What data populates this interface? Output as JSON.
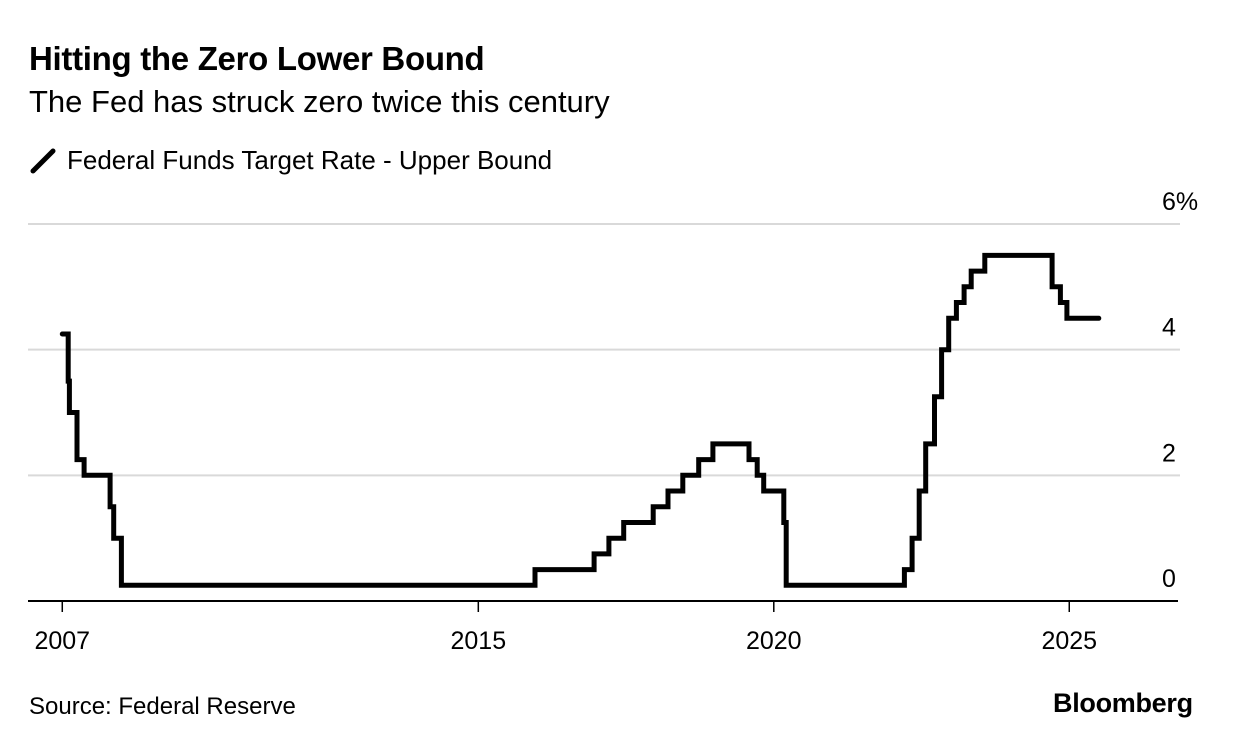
{
  "header": {
    "title": "Hitting the Zero Lower Bound",
    "subtitle": "The Fed has struck zero twice this century"
  },
  "legend": {
    "items": [
      {
        "label": "Federal Funds Target Rate - Upper Bound",
        "icon": "line-swatch-icon",
        "color": "#000000"
      }
    ]
  },
  "footer": {
    "source": "Source: Federal Reserve",
    "brand": "Bloomberg"
  },
  "chart_data": {
    "type": "line",
    "step": true,
    "title": "Hitting the Zero Lower Bound",
    "subtitle": "The Fed has struck zero twice this century",
    "xlabel": "",
    "ylabel": "",
    "y_unit": "%",
    "ylim": [
      0,
      6
    ],
    "xlim": [
      2007.38,
      2026.84
    ],
    "yticks": [
      {
        "value": 0,
        "label": "0"
      },
      {
        "value": 2,
        "label": "2"
      },
      {
        "value": 4,
        "label": "4"
      },
      {
        "value": 6,
        "label": "6%"
      }
    ],
    "xticks": [
      {
        "value": 2007.96,
        "label": "2007"
      },
      {
        "value": 2015,
        "label": "2015"
      },
      {
        "value": 2020,
        "label": "2020"
      },
      {
        "value": 2025,
        "label": "2025"
      }
    ],
    "grid": true,
    "legend_position": "top-left",
    "series": [
      {
        "name": "Federal Funds Target Rate - Upper Bound",
        "color": "#000000",
        "points": [
          {
            "x": 2007.96,
            "y": 4.25
          },
          {
            "x": 2008.06,
            "y": 3.5
          },
          {
            "x": 2008.08,
            "y": 3.0
          },
          {
            "x": 2008.21,
            "y": 2.25
          },
          {
            "x": 2008.33,
            "y": 2.0
          },
          {
            "x": 2008.77,
            "y": 1.5
          },
          {
            "x": 2008.83,
            "y": 1.0
          },
          {
            "x": 2008.96,
            "y": 0.25
          },
          {
            "x": 2015.96,
            "y": 0.5
          },
          {
            "x": 2016.96,
            "y": 0.75
          },
          {
            "x": 2017.21,
            "y": 1.0
          },
          {
            "x": 2017.46,
            "y": 1.25
          },
          {
            "x": 2017.96,
            "y": 1.5
          },
          {
            "x": 2018.21,
            "y": 1.75
          },
          {
            "x": 2018.46,
            "y": 2.0
          },
          {
            "x": 2018.73,
            "y": 2.25
          },
          {
            "x": 2018.97,
            "y": 2.5
          },
          {
            "x": 2019.58,
            "y": 2.25
          },
          {
            "x": 2019.72,
            "y": 2.0
          },
          {
            "x": 2019.83,
            "y": 1.75
          },
          {
            "x": 2020.17,
            "y": 1.25
          },
          {
            "x": 2020.21,
            "y": 0.25
          },
          {
            "x": 2022.21,
            "y": 0.5
          },
          {
            "x": 2022.34,
            "y": 1.0
          },
          {
            "x": 2022.46,
            "y": 1.75
          },
          {
            "x": 2022.57,
            "y": 2.5
          },
          {
            "x": 2022.72,
            "y": 3.25
          },
          {
            "x": 2022.84,
            "y": 4.0
          },
          {
            "x": 2022.96,
            "y": 4.5
          },
          {
            "x": 2023.09,
            "y": 4.75
          },
          {
            "x": 2023.22,
            "y": 5.0
          },
          {
            "x": 2023.34,
            "y": 5.25
          },
          {
            "x": 2023.57,
            "y": 5.5
          },
          {
            "x": 2024.71,
            "y": 5.0
          },
          {
            "x": 2024.85,
            "y": 4.75
          },
          {
            "x": 2024.96,
            "y": 4.5
          },
          {
            "x": 2025.5,
            "y": 4.5
          }
        ]
      }
    ]
  }
}
